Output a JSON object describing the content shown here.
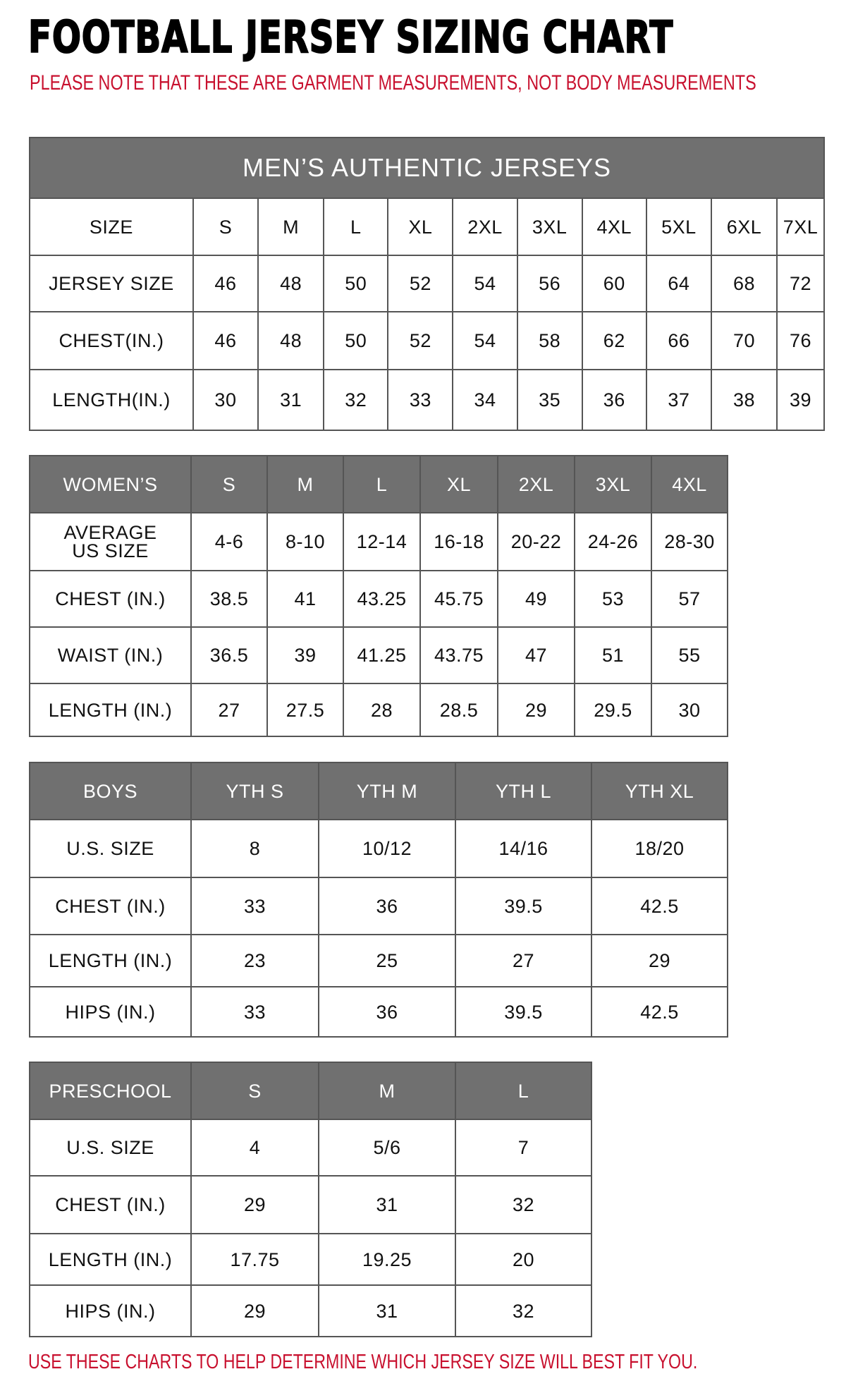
{
  "title": "FOOTBALL JERSEY SIZING CHART",
  "note": "PLEASE NOTE THAT THESE ARE GARMENT MEASUREMENTS, NOT BODY MEASUREMENTS",
  "footer": "USE THESE CHARTS TO HELP DETERMINE WHICH JERSEY SIZE WILL BEST FIT YOU.",
  "colors": {
    "header_bg": "#707070",
    "accent_red": "#c8102e"
  },
  "tables": [
    {
      "caption": "MEN’S AUTHENTIC JERSEYS",
      "header": [
        "SIZE",
        "S",
        "M",
        "L",
        "XL",
        "2XL",
        "3XL",
        "4XL",
        "5XL",
        "6XL",
        "7XL"
      ],
      "rows": [
        [
          "JERSEY SIZE",
          "46",
          "48",
          "50",
          "52",
          "54",
          "56",
          "60",
          "64",
          "68",
          "72"
        ],
        [
          "CHEST(IN.)",
          "46",
          "48",
          "50",
          "52",
          "54",
          "58",
          "62",
          "66",
          "70",
          "76"
        ],
        [
          "LENGTH(IN.)",
          "30",
          "31",
          "32",
          "33",
          "34",
          "35",
          "36",
          "37",
          "38",
          "39"
        ]
      ]
    },
    {
      "header": [
        "WOMEN’S",
        "S",
        "M",
        "L",
        "XL",
        "2XL",
        "3XL",
        "4XL"
      ],
      "rows": [
        [
          "AVERAGE US SIZE",
          "4-6",
          "8-10",
          "12-14",
          "16-18",
          "20-22",
          "24-26",
          "28-30"
        ],
        [
          "CHEST (IN.)",
          "38.5",
          "41",
          "43.25",
          "45.75",
          "49",
          "53",
          "57"
        ],
        [
          "WAIST (IN.)",
          "36.5",
          "39",
          "41.25",
          "43.75",
          "47",
          "51",
          "55"
        ],
        [
          "LENGTH (IN.)",
          "27",
          "27.5",
          "28",
          "28.5",
          "29",
          "29.5",
          "30"
        ]
      ]
    },
    {
      "header": [
        "BOYS",
        "YTH S",
        "YTH M",
        "YTH L",
        "YTH XL"
      ],
      "rows": [
        [
          "U.S. SIZE",
          "8",
          "10/12",
          "14/16",
          "18/20"
        ],
        [
          "CHEST (IN.)",
          "33",
          "36",
          "39.5",
          "42.5"
        ],
        [
          "LENGTH (IN.)",
          "23",
          "25",
          "27",
          "29"
        ],
        [
          "HIPS (IN.)",
          "33",
          "36",
          "39.5",
          "42.5"
        ]
      ]
    },
    {
      "header": [
        "PRESCHOOL",
        "S",
        "M",
        "L"
      ],
      "rows": [
        [
          "U.S. SIZE",
          "4",
          "5/6",
          "7"
        ],
        [
          "CHEST (IN.)",
          "29",
          "31",
          "32"
        ],
        [
          "LENGTH (IN.)",
          "17.75",
          "19.25",
          "20"
        ],
        [
          "HIPS (IN.)",
          "29",
          "31",
          "32"
        ]
      ]
    }
  ]
}
